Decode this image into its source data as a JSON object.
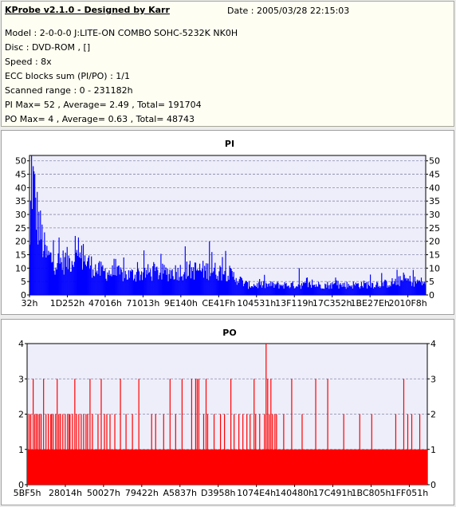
{
  "info": {
    "title": "KProbe v2.1.0 - Designed by Karr",
    "date": "Date : 2005/03/28 22:15:03",
    "lines": [
      "Model : 2-0-0-0 J:LITE-ON COMBO SOHC-5232K NK0H",
      "Disc : DVD-ROM ,  []",
      "Speed : 8x",
      "ECC blocks sum (PI/PO) : 1/1",
      "Scanned range : 0 - 231182h",
      "PI Max= 52 , Average= 2.49 , Total= 191704",
      "PO Max= 4 , Average= 0.63 , Total= 48743"
    ]
  },
  "colors": {
    "pi_series": "#0000ff",
    "po_series": "#ff0000",
    "plot_bg": "#eeeefa",
    "grid": "#8888aa"
  },
  "chart_data": [
    {
      "type": "bar",
      "title": "PI",
      "x_tick_labels": [
        "32h",
        "1D252h",
        "47016h",
        "71013h",
        "9E140h",
        "CE41Fh",
        "104531h",
        "13F119h",
        "17C352h",
        "1BE27Eh",
        "2010F8h"
      ],
      "ylim": [
        0,
        52
      ],
      "y_ticks": [
        0,
        5,
        10,
        15,
        20,
        25,
        30,
        35,
        40,
        45,
        50
      ],
      "grid": "horizontal dashed",
      "n_samples": 490,
      "profile": {
        "x": [
          0,
          0.004,
          0.01,
          0.02,
          0.04,
          0.07,
          0.1,
          0.13,
          0.17,
          0.2,
          0.25,
          0.3,
          0.35,
          0.4,
          0.45,
          0.5,
          0.52,
          0.55,
          0.6,
          0.7,
          0.8,
          0.9,
          0.95,
          1.0
        ],
        "y": [
          18,
          50,
          42,
          30,
          16,
          13,
          14,
          15,
          10,
          9,
          8,
          9,
          9,
          10,
          10,
          9,
          7,
          4,
          4,
          4,
          4,
          4.5,
          6,
          5
        ]
      },
      "peaks": [
        {
          "x": 0.004,
          "y": 52
        },
        {
          "x": 0.013,
          "y": 40
        },
        {
          "x": 0.115,
          "y": 22
        },
        {
          "x": 0.135,
          "y": 19
        },
        {
          "x": 0.455,
          "y": 20
        },
        {
          "x": 0.46,
          "y": 16
        },
        {
          "x": 0.68,
          "y": 10
        }
      ]
    },
    {
      "type": "bar",
      "title": "PO",
      "x_tick_labels": [
        "5BF5h",
        "28014h",
        "50027h",
        "79422h",
        "A5837h",
        "D3958h",
        "1074E4h",
        "140480h",
        "17C491h",
        "1BC805h",
        "1FF051h"
      ],
      "ylim": [
        0,
        4
      ],
      "y_ticks": [
        0,
        1,
        2,
        3,
        4
      ],
      "grid": "horizontal dashed",
      "n_samples": 500,
      "baseline": 1,
      "x_values": [
        0.0,
        0.004,
        0.008,
        0.014,
        0.018,
        0.022,
        0.026,
        0.03,
        0.034,
        0.04,
        0.046,
        0.052,
        0.058,
        0.06,
        0.064,
        0.07,
        0.074,
        0.078,
        0.082,
        0.088,
        0.094,
        0.1,
        0.104,
        0.106,
        0.112,
        0.118,
        0.122,
        0.128,
        0.134,
        0.14,
        0.146,
        0.15,
        0.156,
        0.162,
        0.176,
        0.184,
        0.192,
        0.198,
        0.206,
        0.218,
        0.232,
        0.246,
        0.262,
        0.278,
        0.31,
        0.32,
        0.34,
        0.356,
        0.37,
        0.386,
        0.41,
        0.42,
        0.424,
        0.428,
        0.44,
        0.446,
        0.45,
        0.466,
        0.482,
        0.492,
        0.508,
        0.516,
        0.528,
        0.538,
        0.548,
        0.556,
        0.566,
        0.57,
        0.58,
        0.592,
        0.596,
        0.6,
        0.604,
        0.608,
        0.612,
        0.618,
        0.622,
        0.64,
        0.66,
        0.686,
        0.72,
        0.75,
        0.79,
        0.83,
        0.86,
        0.92,
        0.94,
        0.95,
        0.96,
        0.98
      ],
      "y_values": [
        2,
        2,
        2,
        3,
        2,
        2,
        2,
        2,
        2,
        3,
        2,
        2,
        2,
        2,
        2,
        2,
        3,
        2,
        2,
        2,
        2,
        2,
        2,
        2,
        2,
        3,
        2,
        2,
        2,
        2,
        2,
        2,
        3,
        2,
        2,
        3,
        2,
        2,
        2,
        2,
        3,
        2,
        2,
        3,
        2,
        2,
        2,
        3,
        2,
        3,
        3,
        3,
        3,
        3,
        2,
        3,
        2,
        2,
        2,
        2,
        3,
        2,
        2,
        2,
        2,
        2,
        3,
        2,
        2,
        2,
        4,
        3,
        2,
        3,
        2,
        2,
        2,
        2,
        3,
        2,
        3,
        3,
        2,
        2,
        2,
        2,
        3,
        2,
        2,
        2
      ]
    }
  ]
}
